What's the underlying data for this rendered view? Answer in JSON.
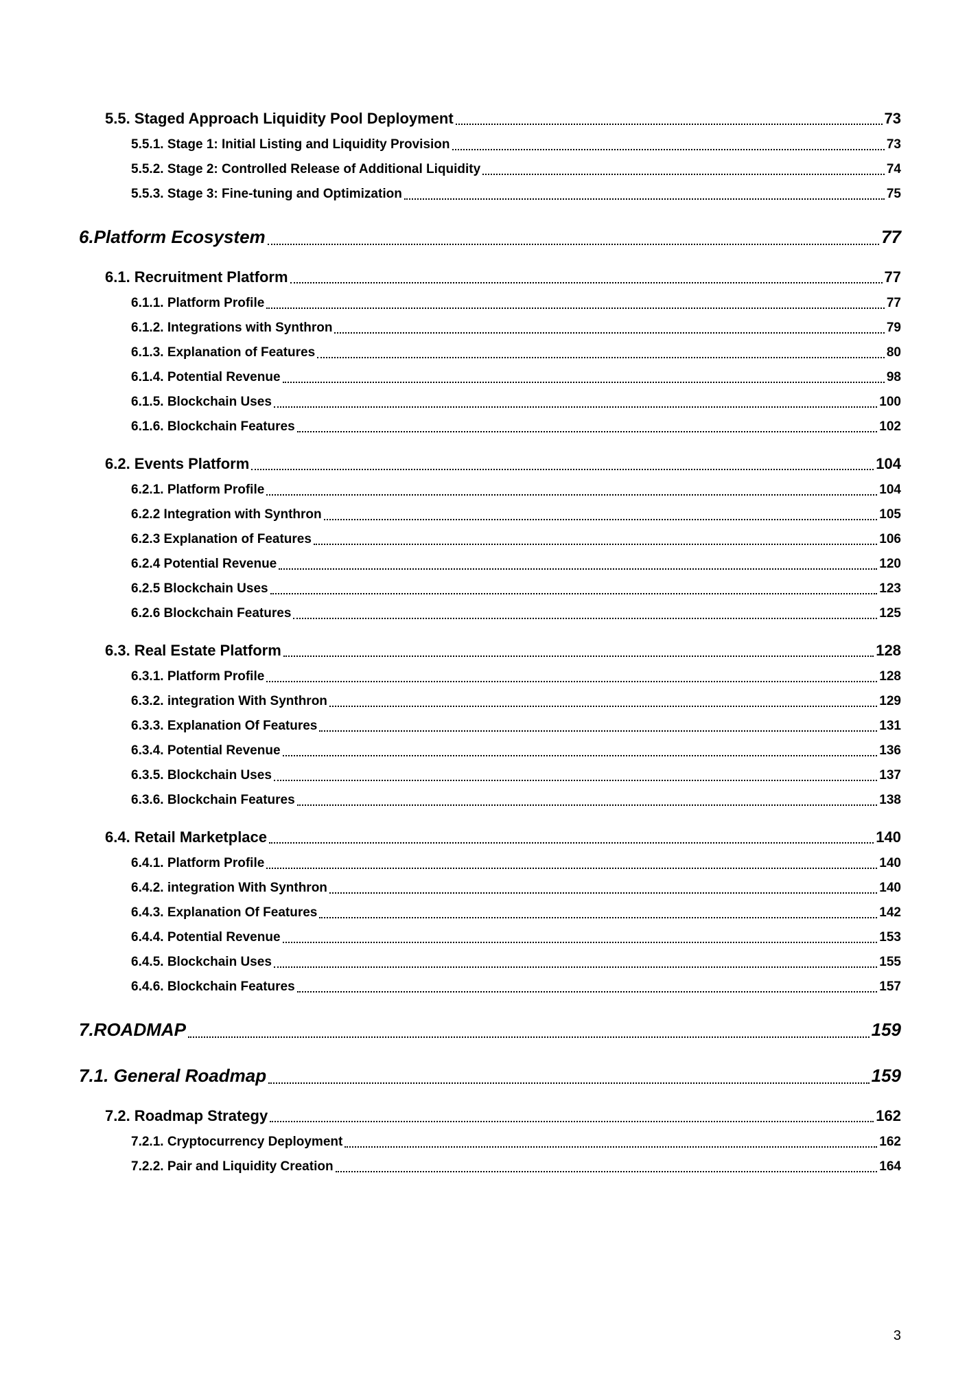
{
  "page_number": "3",
  "colors": {
    "text": "#000000",
    "background": "#ffffff"
  },
  "fonts": {
    "lvl1_size": 26,
    "lvl2_size": 22,
    "lvl3_size": 19
  },
  "entries": [
    {
      "level": "lvl2",
      "title": "5.5. Staged Approach Liquidity Pool Deployment",
      "page": "73"
    },
    {
      "level": "lvl3",
      "title": "5.5.1. Stage 1: Initial Listing and Liquidity Provision",
      "page": "73"
    },
    {
      "level": "lvl3",
      "title": "5.5.2. Stage 2: Controlled Release of Additional Liquidity",
      "page": "74"
    },
    {
      "level": "lvl3",
      "title": "5.5.3. Stage 3: Fine-tuning and Optimization",
      "page": "75"
    },
    {
      "level": "lvl1",
      "title": "6.Platform Ecosystem",
      "page": "77"
    },
    {
      "level": "lvl2",
      "title": "6.1. Recruitment Platform",
      "page": "77"
    },
    {
      "level": "lvl3",
      "title": "6.1.1. Platform Profile",
      "page": "77"
    },
    {
      "level": "lvl3",
      "title": "6.1.2. Integrations with Synthron",
      "page": "79"
    },
    {
      "level": "lvl3",
      "title": "6.1.3. Explanation of Features",
      "page": "80"
    },
    {
      "level": "lvl3",
      "title": "6.1.4. Potential Revenue",
      "page": "98"
    },
    {
      "level": "lvl3",
      "title": "6.1.5. Blockchain Uses",
      "page": "100"
    },
    {
      "level": "lvl3",
      "title": "6.1.6. Blockchain Features",
      "page": "102"
    },
    {
      "level": "lvl2",
      "title": "6.2. Events Platform",
      "page": "104"
    },
    {
      "level": "lvl3",
      "title": "6.2.1. Platform Profile",
      "page": "104"
    },
    {
      "level": "lvl3",
      "title": "6.2.2 Integration with Synthron",
      "page": "105"
    },
    {
      "level": "lvl3",
      "title": "6.2.3 Explanation of Features",
      "page": "106"
    },
    {
      "level": "lvl3",
      "title": "6.2.4 Potential Revenue",
      "page": "120"
    },
    {
      "level": "lvl3",
      "title": "6.2.5 Blockchain Uses",
      "page": "123"
    },
    {
      "level": "lvl3",
      "title": "6.2.6 Blockchain Features",
      "page": "125"
    },
    {
      "level": "lvl2",
      "title": "6.3. Real Estate Platform",
      "page": "128"
    },
    {
      "level": "lvl3",
      "title": "6.3.1. Platform Profile",
      "page": "128"
    },
    {
      "level": "lvl3",
      "title": "6.3.2. integration With Synthron",
      "page": "129"
    },
    {
      "level": "lvl3",
      "title": "6.3.3. Explanation Of Features",
      "page": "131"
    },
    {
      "level": "lvl3",
      "title": "6.3.4. Potential Revenue",
      "page": "136"
    },
    {
      "level": "lvl3",
      "title": "6.3.5. Blockchain Uses",
      "page": "137"
    },
    {
      "level": "lvl3",
      "title": "6.3.6. Blockchain Features",
      "page": "138"
    },
    {
      "level": "lvl2",
      "title": "6.4. Retail Marketplace",
      "page": "140"
    },
    {
      "level": "lvl3",
      "title": "6.4.1. Platform Profile",
      "page": "140"
    },
    {
      "level": "lvl3",
      "title": "6.4.2. integration With Synthron",
      "page": "140"
    },
    {
      "level": "lvl3",
      "title": "6.4.3. Explanation Of Features",
      "page": "142"
    },
    {
      "level": "lvl3",
      "title": "6.4.4. Potential Revenue",
      "page": "153"
    },
    {
      "level": "lvl3",
      "title": "6.4.5. Blockchain Uses",
      "page": "155"
    },
    {
      "level": "lvl3",
      "title": "6.4.6. Blockchain Features",
      "page": "157"
    },
    {
      "level": "lvl1",
      "title": "7.ROADMAP",
      "page": "159"
    },
    {
      "level": "lvl2i",
      "title": "7.1. General Roadmap",
      "page": "159"
    },
    {
      "level": "lvl2",
      "title": "7.2. Roadmap Strategy",
      "page": "162"
    },
    {
      "level": "lvl3",
      "title": "7.2.1. Cryptocurrency Deployment",
      "page": "162"
    },
    {
      "level": "lvl3",
      "title": "7.2.2. Pair and Liquidity Creation",
      "page": "164"
    }
  ]
}
